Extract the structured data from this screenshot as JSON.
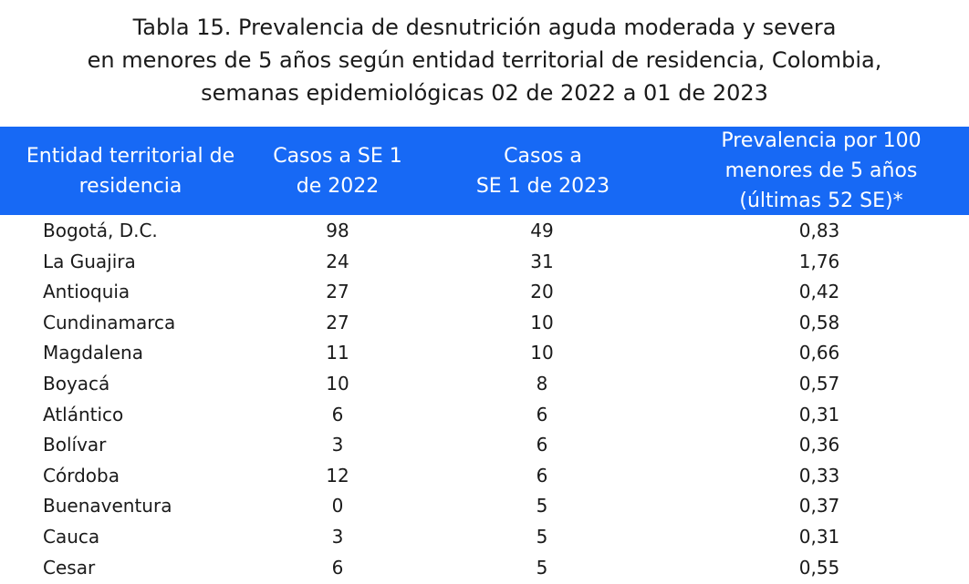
{
  "title_lines": [
    "Tabla 15. Prevalencia de desnutrición aguda moderada y severa",
    "en menores de 5 años según entidad territorial de residencia, Colombia,",
    "semanas epidemiológicas 02 de 2022 a 01 de 2023"
  ],
  "table": {
    "header": [
      [
        "Entidad territorial de",
        "residencia"
      ],
      [
        "Casos a SE 1",
        "de 2022"
      ],
      [
        "Casos a",
        "SE 1 de 2023"
      ],
      [
        "Prevalencia por 100",
        "menores de 5 años",
        "(últimas 52 SE)*"
      ]
    ],
    "rows": [
      [
        "Bogotá, D.C.",
        "98",
        "49",
        "0,83"
      ],
      [
        "La Guajira",
        "24",
        "31",
        "1,76"
      ],
      [
        "Antioquia",
        "27",
        "20",
        "0,42"
      ],
      [
        "Cundinamarca",
        "27",
        "10",
        "0,58"
      ],
      [
        "Magdalena",
        "11",
        "10",
        "0,66"
      ],
      [
        "Boyacá",
        "10",
        "8",
        "0,57"
      ],
      [
        "Atlántico",
        "6",
        "6",
        "0,31"
      ],
      [
        "Bolívar",
        "3",
        "6",
        "0,36"
      ],
      [
        "Córdoba",
        "12",
        "6",
        "0,33"
      ],
      [
        "Buenaventura",
        "0",
        "5",
        "0,37"
      ],
      [
        "Cauca",
        "3",
        "5",
        "0,31"
      ],
      [
        "Cesar",
        "6",
        "5",
        "0,55"
      ]
    ]
  }
}
